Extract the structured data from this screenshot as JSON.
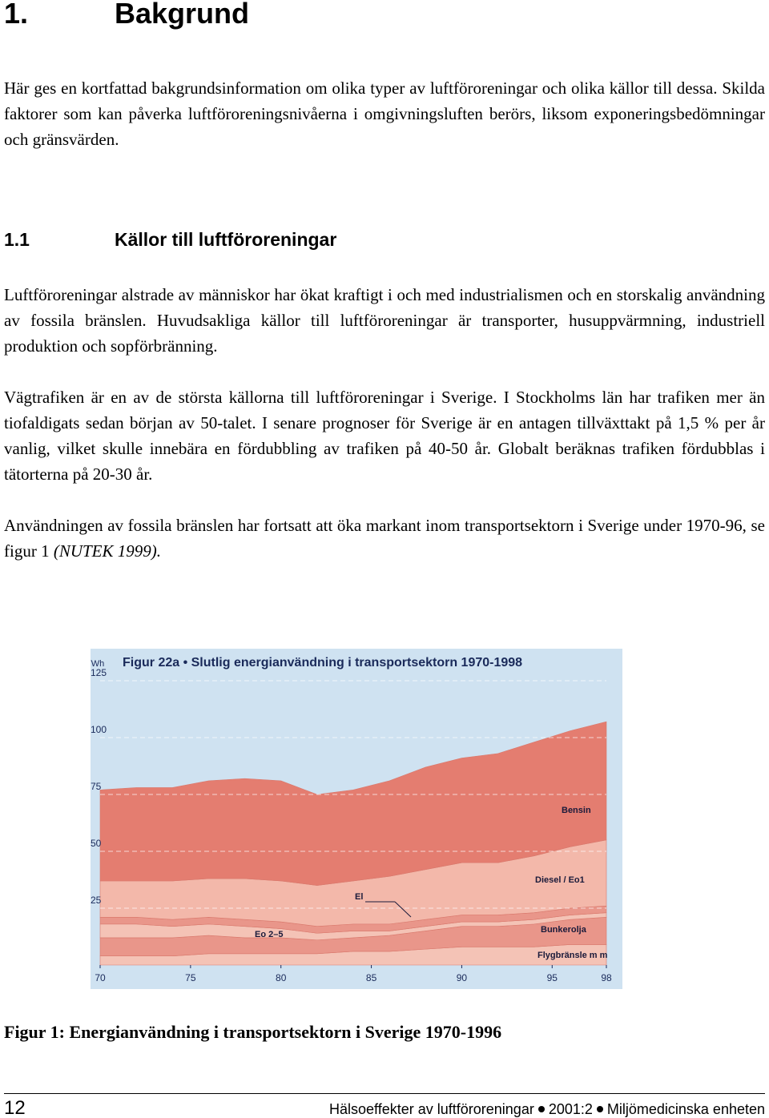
{
  "heading": {
    "number": "1.",
    "title": "Bakgrund"
  },
  "intro": "Här ges en kortfattad bakgrundsinformation om olika typer av luftföroreningar och olika källor till dessa. Skilda faktorer som kan påverka luftföroreningsnivåerna i omgivningsluften berörs, liksom exponeringsbedömningar och gränsvärden.",
  "section": {
    "number": "1.1",
    "title": "Källor till luftföroreningar"
  },
  "paragraphs": [
    "Luftföroreningar alstrade av människor har ökat kraftigt i och med industrialismen och en storskalig användning av fossila bränslen. Huvudsakliga källor till luftföroreningar är transporter, husuppvärmning, industriell produktion och sopförbränning.",
    "Vägtrafiken är en av de största källorna till luftföroreningar i Sverige. I Stockholms län har trafiken mer än tiofaldigats sedan början av 50-talet. I senare prognoser för Sverige är en antagen tillväxttakt på 1,5 % per år vanlig, vilket skulle innebära en fördubbling av trafiken på 40-50 år. Globalt beräknas trafiken fördubblas i tätorterna på 20-30 år.",
    {
      "text": "Användningen av fossila bränslen har fortsatt att öka markant inom transportsektorn i Sverige under 1970-96, se  figur 1 ",
      "citation": "(NUTEK 1999)."
    }
  ],
  "chart_data": {
    "type": "area",
    "stacked": true,
    "title": "Figur 22a • Slutlig energianvändning i transportsektorn 1970-1998",
    "y_unit": "TWh",
    "x": [
      70,
      72,
      74,
      76,
      78,
      80,
      82,
      84,
      86,
      88,
      90,
      92,
      94,
      96,
      98
    ],
    "xlim": [
      70,
      98
    ],
    "xticks": [
      70,
      75,
      80,
      85,
      90,
      95,
      98
    ],
    "ylim": [
      0,
      125
    ],
    "yticks": [
      25,
      50,
      75,
      100,
      125
    ],
    "grid": true,
    "series": [
      {
        "name": "Flygbränsle m m",
        "color": "#f4c3b6",
        "values": [
          4,
          4,
          4,
          5,
          5,
          5,
          5,
          6,
          6,
          7,
          8,
          8,
          8,
          9,
          9
        ]
      },
      {
        "name": "Bunkerolja",
        "color": "#e9968a",
        "values": [
          8,
          8,
          8,
          8,
          7,
          7,
          6,
          6,
          7,
          8,
          9,
          9,
          10,
          11,
          12
        ]
      },
      {
        "name": "Eo 2–5",
        "color": "#f4c3b6",
        "values": [
          6,
          6,
          5,
          5,
          5,
          4,
          3,
          3,
          2,
          2,
          2,
          2,
          2,
          2,
          2
        ]
      },
      {
        "name": "El",
        "color": "#e9968a",
        "values": [
          3,
          3,
          3,
          3,
          3,
          3,
          3,
          3,
          3,
          3,
          3,
          3,
          3,
          3,
          3
        ]
      },
      {
        "name": "Diesel / Eo1",
        "color": "#f3b8aa",
        "values": [
          16,
          16,
          17,
          17,
          18,
          18,
          18,
          19,
          21,
          22,
          23,
          23,
          25,
          27,
          29
        ]
      },
      {
        "name": "Bensin",
        "color": "#e47d70",
        "values": [
          40,
          41,
          41,
          43,
          44,
          44,
          40,
          40,
          42,
          45,
          46,
          48,
          50,
          51,
          52
        ]
      }
    ]
  },
  "caption": "Figur 1: Energianvändning i transportsektorn i Sverige 1970-1996",
  "footer": {
    "page": "12",
    "title": "Hälsoeffekter av luftföroreningar",
    "report": "2001:2",
    "unit": "Miljömedicinska enheten"
  }
}
